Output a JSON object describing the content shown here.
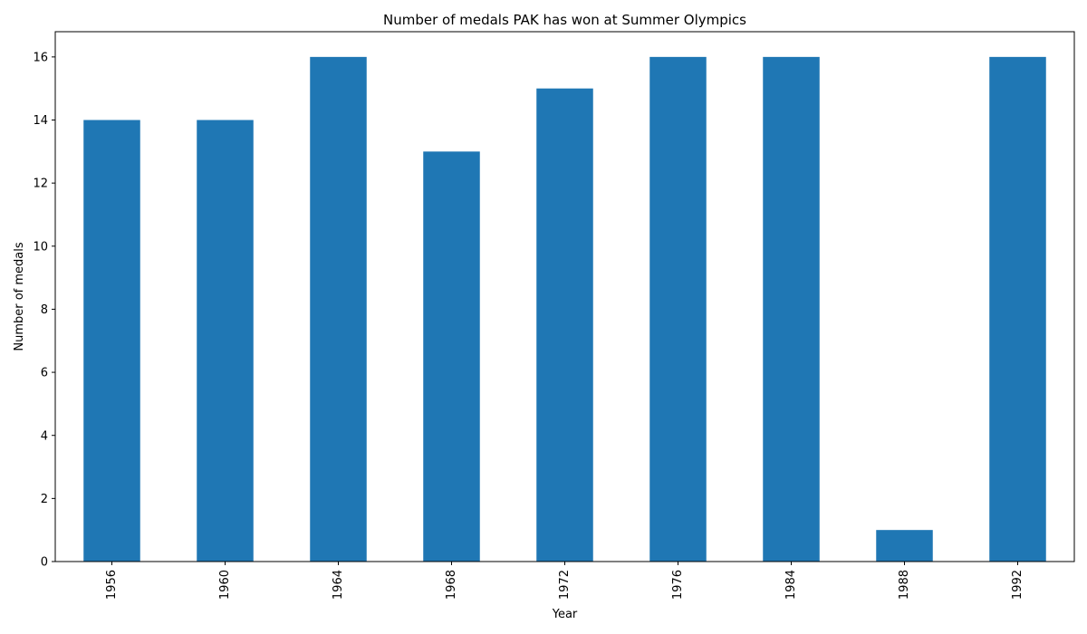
{
  "chart_data": {
    "type": "bar",
    "title": "Number of medals PAK has won at Summer Olympics",
    "xlabel": "Year",
    "ylabel": "Number of medals",
    "categories": [
      "1956",
      "1960",
      "1964",
      "1968",
      "1972",
      "1976",
      "1984",
      "1988",
      "1992"
    ],
    "values": [
      14,
      14,
      16,
      13,
      15,
      16,
      16,
      1,
      16
    ],
    "ylim": [
      0,
      16.8
    ],
    "yticks": [
      0,
      2,
      4,
      6,
      8,
      10,
      12,
      14,
      16
    ],
    "x_tick_rotation": "vertical",
    "grid": false,
    "legend": "none",
    "bar_color": "#1f77b4"
  }
}
